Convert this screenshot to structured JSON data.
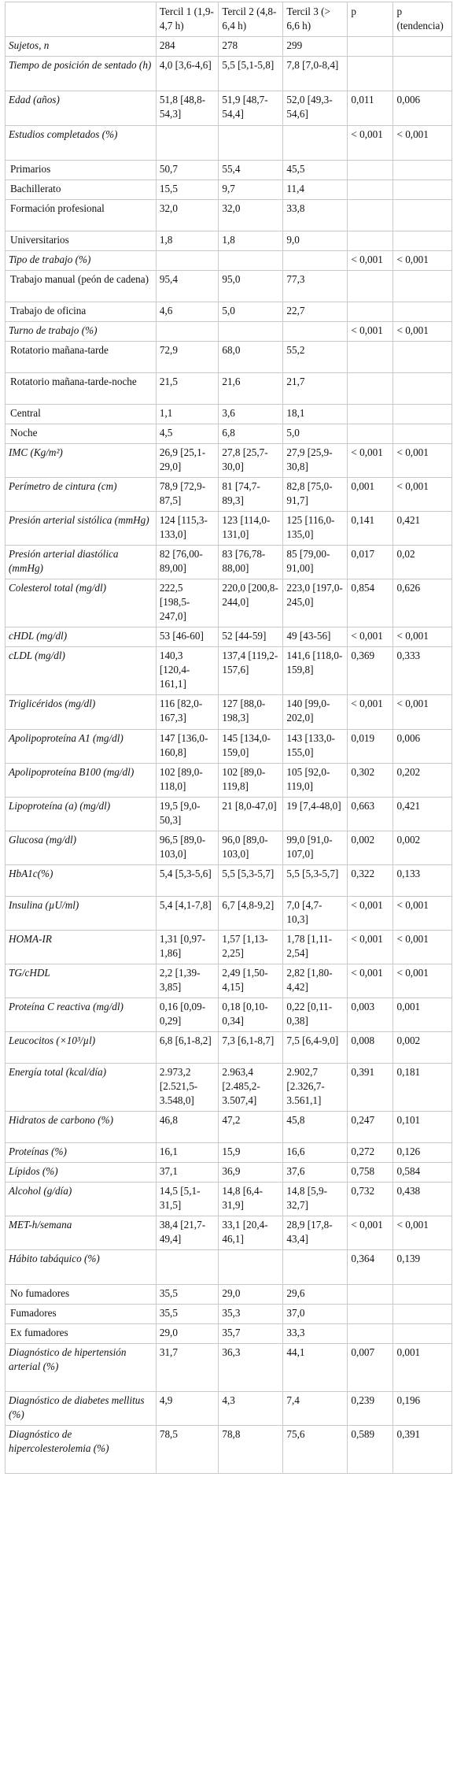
{
  "columns": [
    "",
    "Tercil 1 (1,9-4,7 h)",
    "Tercil 2 (4,8-6,4 h)",
    "Tercil 3 (> 6,6 h)",
    "p",
    "p (tendencia)"
  ],
  "rows": [
    {
      "label": "Sujetos, n",
      "italic": true,
      "cells": [
        "284",
        "278",
        "299",
        "",
        ""
      ]
    },
    {
      "label": "Tiempo de posición de sentado (h)",
      "italic": true,
      "cells": [
        "4,0 [3,6-4,6]",
        "5,5 [5,1-5,8]",
        "7,8 [7,0-8,4]",
        "",
        ""
      ]
    },
    {
      "label": "Edad (años)",
      "italic": true,
      "cells": [
        "51,8 [48,8-54,3]",
        "51,9 [48,7-54,4]",
        "52,0 [49,3-54,6]",
        "0,011",
        "0,006"
      ]
    },
    {
      "label": "Estudios completados (%)",
      "italic": true,
      "cells": [
        "",
        "",
        "",
        "< 0,001",
        "< 0,001"
      ]
    },
    {
      "label": "Primarios",
      "italic": false,
      "cells": [
        "50,7",
        "55,4",
        "45,5",
        "",
        ""
      ]
    },
    {
      "label": "Bachillerato",
      "italic": false,
      "cells": [
        "15,5",
        "9,7",
        "11,4",
        "",
        ""
      ]
    },
    {
      "label": "Formación profesional",
      "italic": false,
      "cells": [
        "32,0",
        "32,0",
        "33,8",
        "",
        ""
      ]
    },
    {
      "label": "Universitarios",
      "italic": false,
      "cells": [
        "1,8",
        "1,8",
        "9,0",
        "",
        ""
      ]
    },
    {
      "label": "Tipo de trabajo (%)",
      "italic": true,
      "cells": [
        "",
        "",
        "",
        "< 0,001",
        "< 0,001"
      ]
    },
    {
      "label": "Trabajo manual (peón de cadena)",
      "italic": false,
      "cells": [
        "95,4",
        "95,0",
        "77,3",
        "",
        ""
      ]
    },
    {
      "label": "Trabajo de oficina",
      "italic": false,
      "cells": [
        "4,6",
        "5,0",
        "22,7",
        "",
        ""
      ]
    },
    {
      "label": "Turno de trabajo (%)",
      "italic": true,
      "cells": [
        "",
        "",
        "",
        "< 0,001",
        "< 0,001"
      ]
    },
    {
      "label": "Rotatorio mañana-tarde",
      "italic": false,
      "cells": [
        "72,9",
        "68,0",
        "55,2",
        "",
        ""
      ]
    },
    {
      "label": "Rotatorio mañana-tarde-noche",
      "italic": false,
      "cells": [
        "21,5",
        "21,6",
        "21,7",
        "",
        ""
      ]
    },
    {
      "label": "Central",
      "italic": false,
      "cells": [
        "1,1",
        "3,6",
        "18,1",
        "",
        ""
      ]
    },
    {
      "label": "Noche",
      "italic": false,
      "cells": [
        "4,5",
        "6,8",
        "5,0",
        "",
        ""
      ]
    },
    {
      "label": "IMC (Kg/m²)",
      "italic": true,
      "cells": [
        "26,9 [25,1-29,0]",
        "27,8 [25,7-30,0]",
        "27,9 [25,9-30,8]",
        "< 0,001",
        "< 0,001"
      ]
    },
    {
      "label": "Perímetro de cintura (cm)",
      "italic": true,
      "cells": [
        "78,9 [72,9-87,5]",
        "81 [74,7-89,3]",
        "82,8 [75,0-91,7]",
        "0,001",
        "< 0,001"
      ]
    },
    {
      "label": "Presión arterial sistólica (mmHg)",
      "italic": true,
      "cells": [
        "124 [115,3-133,0]",
        "123 [114,0-131,0]",
        "125 [116,0-135,0]",
        "0,141",
        "0,421"
      ]
    },
    {
      "label": "Presión arterial diastólica (mmHg)",
      "italic": true,
      "cells": [
        "82 [76,00-89,00]",
        "83 [76,78-88,00]",
        "85 [79,00-91,00]",
        "0,017",
        "0,02"
      ]
    },
    {
      "label": "Colesterol total (mg/dl)",
      "italic": true,
      "cells": [
        "222,5 [198,5-247,0]",
        "220,0 [200,8-244,0]",
        "223,0 [197,0-245,0]",
        "0,854",
        "0,626"
      ]
    },
    {
      "label": "cHDL (mg/dl)",
      "italic": true,
      "cells": [
        "53 [46-60]",
        "52 [44-59]",
        "49 [43-56]",
        "< 0,001",
        "< 0,001"
      ]
    },
    {
      "label": "cLDL (mg/dl)",
      "italic": true,
      "cells": [
        "140,3 [120,4-161,1]",
        "137,4 [119,2-157,6]",
        "141,6 [118,0-159,8]",
        "0,369",
        "0,333"
      ]
    },
    {
      "label": "Triglicéridos (mg/dl)",
      "italic": true,
      "cells": [
        "116 [82,0-167,3]",
        "127 [88,0-198,3]",
        "140 [99,0-202,0]",
        "< 0,001",
        "< 0,001"
      ]
    },
    {
      "label": "Apolipoproteína A1 (mg/dl)",
      "italic": true,
      "cells": [
        "147 [136,0-160,8]",
        "145 [134,0-159,0]",
        "143 [133,0-155,0]",
        "0,019",
        "0,006"
      ]
    },
    {
      "label": "Apolipoproteína B100 (mg/dl)",
      "italic": true,
      "cells": [
        "102 [89,0-118,0]",
        "102 [89,0-119,8]",
        "105 [92,0-119,0]",
        "0,302",
        "0,202"
      ]
    },
    {
      "label": "Lipoproteína (a) (mg/dl)",
      "italic": true,
      "cells": [
        "19,5 [9,0-50,3]",
        "21 [8,0-47,0]",
        "19 [7,4-48,0]",
        "0,663",
        "0,421"
      ]
    },
    {
      "label": "Glucosa (mg/dl)",
      "italic": true,
      "cells": [
        "96,5 [89,0-103,0]",
        "96,0 [89,0-103,0]",
        "99,0 [91,0-107,0]",
        "0,002",
        "0,002"
      ]
    },
    {
      "label": "HbA1c(%)",
      "italic": true,
      "cells": [
        "5,4 [5,3-5,6]",
        "5,5 [5,3-5,7]",
        "5,5 [5,3-5,7]",
        "0,322",
        "0,133"
      ]
    },
    {
      "label": "Insulina (µU/ml)",
      "italic": true,
      "cells": [
        "5,4 [4,1-7,8]",
        "6,7 [4,8-9,2]",
        "7,0 [4,7-10,3]",
        "< 0,001",
        "< 0,001"
      ]
    },
    {
      "label": "HOMA-IR",
      "italic": true,
      "cells": [
        "1,31 [0,97-1,86]",
        "1,57 [1,13-2,25]",
        "1,78 [1,11-2,54]",
        "< 0,001",
        "< 0,001"
      ]
    },
    {
      "label": "TG/cHDL",
      "italic": true,
      "cells": [
        "2,2 [1,39-3,85]",
        "2,49 [1,50-4,15]",
        "2,82 [1,80-4,42]",
        "< 0,001",
        "< 0,001"
      ]
    },
    {
      "label": "Proteína C reactiva (mg/dl)",
      "italic": true,
      "cells": [
        "0,16 [0,09-0,29]",
        "0,18 [0,10-0,34]",
        "0,22 [0,11-0,38]",
        "0,003",
        "0,001"
      ]
    },
    {
      "label": "Leucocitos (×10³/µl)",
      "italic": true,
      "cells": [
        "6,8 [6,1-8,2]",
        "7,3 [6,1-8,7]",
        "7,5 [6,4-9,0]",
        "0,008",
        "0,002"
      ]
    },
    {
      "label": "Energía total (kcal/día)",
      "italic": true,
      "cells": [
        "2.973,2 [2.521,5-3.548,0]",
        "2.963,4 [2.485,2-3.507,4]",
        "2.902,7 [2.326,7-3.561,1]",
        "0,391",
        "0,181"
      ]
    },
    {
      "label": "Hidratos de carbono (%)",
      "italic": true,
      "cells": [
        "46,8",
        "47,2",
        "45,8",
        "0,247",
        "0,101"
      ]
    },
    {
      "label": "Proteínas (%)",
      "italic": true,
      "cells": [
        "16,1",
        "15,9",
        "16,6",
        "0,272",
        "0,126"
      ]
    },
    {
      "label": "Lípidos (%)",
      "italic": true,
      "cells": [
        "37,1",
        "36,9",
        "37,6",
        "0,758",
        "0,584"
      ]
    },
    {
      "label": "Alcohol (g/día)",
      "italic": true,
      "cells": [
        "14,5 [5,1-31,5]",
        "14,8 [6,4-31,9]",
        "14,8 [5,9-32,7]",
        "0,732",
        "0,438"
      ]
    },
    {
      "label": "MET-h/semana",
      "italic": true,
      "cells": [
        "38,4 [21,7-49,4]",
        "33,1 [20,4-46,1]",
        "28,9 [17,8-43,4]",
        "< 0,001",
        "< 0,001"
      ]
    },
    {
      "label": "Hábito tabáquico (%)",
      "italic": true,
      "cells": [
        "",
        "",
        "",
        "0,364",
        "0,139"
      ]
    },
    {
      "label": "No fumadores",
      "italic": false,
      "cells": [
        "35,5",
        "29,0",
        "29,6",
        "",
        ""
      ]
    },
    {
      "label": "Fumadores",
      "italic": false,
      "cells": [
        "35,5",
        "35,3",
        "37,0",
        "",
        ""
      ]
    },
    {
      "label": "Ex fumadores",
      "italic": false,
      "cells": [
        "29,0",
        "35,7",
        "33,3",
        "",
        ""
      ]
    },
    {
      "label": "Diagnóstico de hipertensión arterial (%)",
      "italic": true,
      "cells": [
        "31,7",
        "36,3",
        "44,1",
        "0,007",
        "0,001"
      ]
    },
    {
      "label": "Diagnóstico de diabetes mellitus (%)",
      "italic": true,
      "cells": [
        "4,9",
        "4,3",
        "7,4",
        "0,239",
        "0,196"
      ]
    },
    {
      "label": "Diagnóstico de hipercolesterolemia (%)",
      "italic": true,
      "cells": [
        "78,5",
        "78,8",
        "75,6",
        "0,589",
        "0,391"
      ]
    }
  ]
}
